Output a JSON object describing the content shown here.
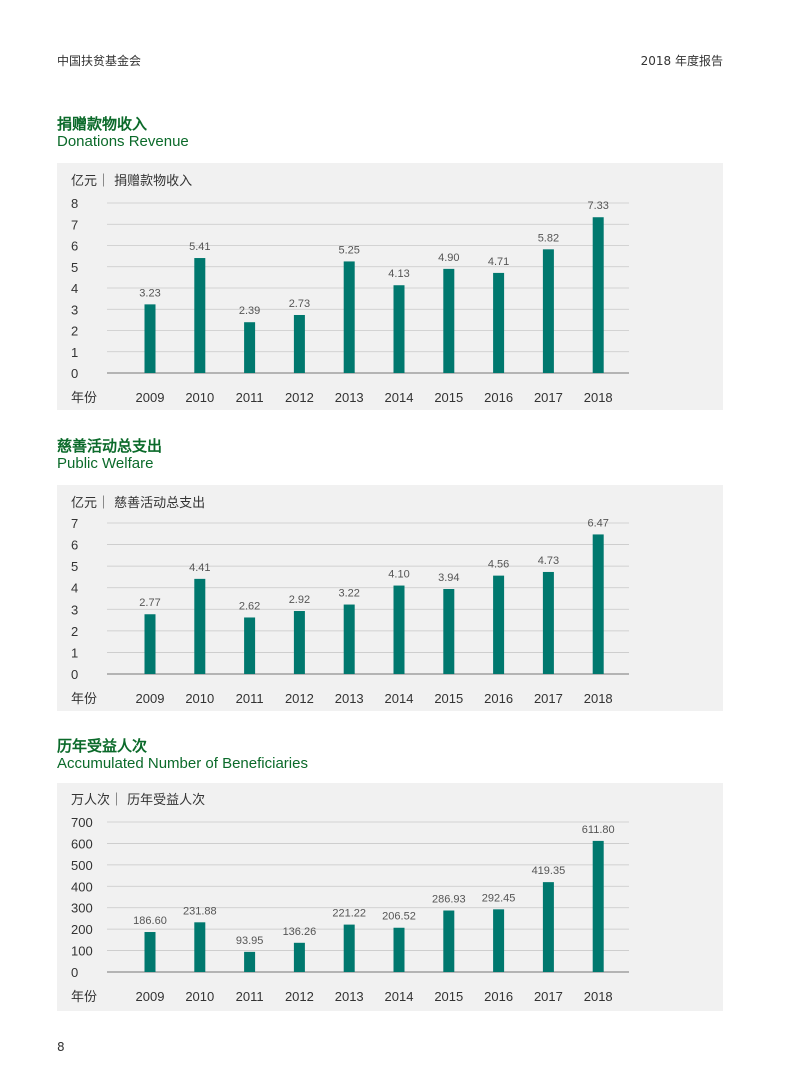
{
  "header": {
    "org": "中国扶贫基金会",
    "report": "2018 年度报告"
  },
  "page_number": "8",
  "colors": {
    "bar": "#00786e",
    "title": "#0b6a2a",
    "panel": "#f1f1f1",
    "grid": "#c8c8c8"
  },
  "chart_data": [
    {
      "type": "bar",
      "title": "捐赠款物收入",
      "subtitle": "Donations Revenue",
      "unit_label": "亿元｜  捐赠款物收入",
      "xlabel": "年份",
      "categories": [
        "2009",
        "2010",
        "2011",
        "2012",
        "2013",
        "2014",
        "2015",
        "2016",
        "2017",
        "2018"
      ],
      "values": [
        3.23,
        5.41,
        2.39,
        2.73,
        5.25,
        4.13,
        4.9,
        4.71,
        5.82,
        7.33
      ],
      "value_labels": [
        "3.23",
        "5.41",
        "2.39",
        "2.73",
        "5.25",
        "4.13",
        "4.90",
        "4.71",
        "5.82",
        "7.33"
      ],
      "yticks": [
        "0",
        "1",
        "2",
        "3",
        "4",
        "5",
        "6",
        "7",
        "8"
      ],
      "ylim": [
        0,
        8
      ],
      "grid": true
    },
    {
      "type": "bar",
      "title": "慈善活动总支出",
      "subtitle": "Public Welfare",
      "unit_label": "亿元｜  慈善活动总支出",
      "xlabel": "年份",
      "categories": [
        "2009",
        "2010",
        "2011",
        "2012",
        "2013",
        "2014",
        "2015",
        "2016",
        "2017",
        "2018"
      ],
      "values": [
        2.77,
        4.41,
        2.62,
        2.92,
        3.22,
        4.1,
        3.94,
        4.56,
        4.73,
        6.47
      ],
      "value_labels": [
        "2.77",
        "4.41",
        "2.62",
        "2.92",
        "3.22",
        "4.10",
        "3.94",
        "4.56",
        "4.73",
        "6.47"
      ],
      "yticks": [
        "0",
        "1",
        "2",
        "3",
        "4",
        "5",
        "6",
        "7"
      ],
      "ylim": [
        0,
        7
      ],
      "grid": true
    },
    {
      "type": "bar",
      "title": "历年受益人次",
      "subtitle": "Accumulated Number of Beneficiaries",
      "unit_label": "万人次｜  历年受益人次",
      "xlabel": "年份",
      "categories": [
        "2009",
        "2010",
        "2011",
        "2012",
        "2013",
        "2014",
        "2015",
        "2016",
        "2017",
        "2018"
      ],
      "values": [
        186.6,
        231.88,
        93.95,
        136.26,
        221.22,
        206.52,
        286.93,
        292.45,
        419.35,
        611.8
      ],
      "value_labels": [
        "186.60",
        "231.88",
        "93.95",
        "136.26",
        "221.22",
        "206.52",
        "286.93",
        "292.45",
        "419.35",
        "611.80"
      ],
      "yticks": [
        "0",
        "100",
        "200",
        "300",
        "400",
        "500",
        "600",
        "700"
      ],
      "ylim": [
        0,
        700
      ],
      "grid": true
    }
  ]
}
